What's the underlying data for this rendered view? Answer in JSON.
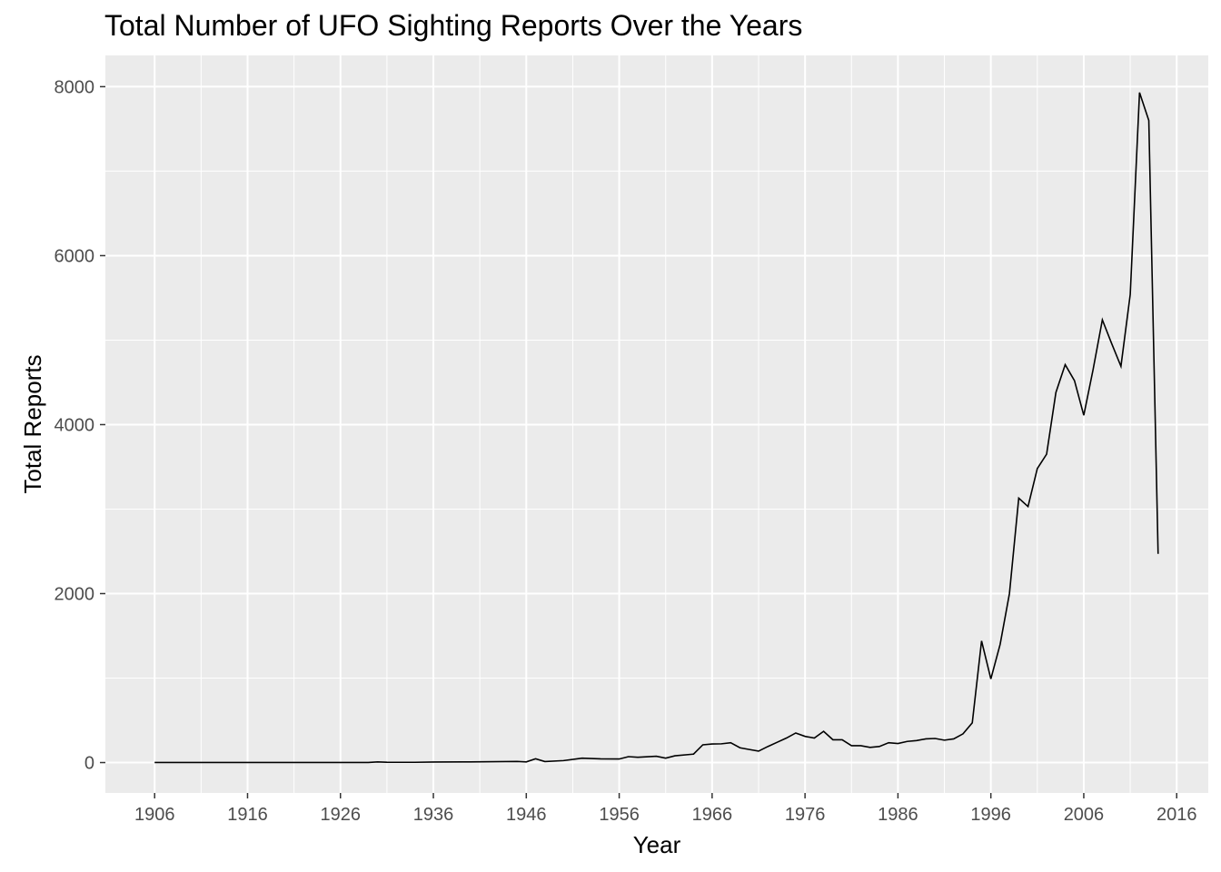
{
  "chart_data": {
    "type": "line",
    "title": "Total Number of UFO Sighting Reports Over the Years",
    "xlabel": "Year",
    "ylabel": "Total Reports",
    "xlim": [
      1900.7,
      2019.4
    ],
    "ylim": [
      -360,
      8370
    ],
    "x_ticks": [
      1906,
      1916,
      1926,
      1936,
      1946,
      1956,
      1966,
      1976,
      1986,
      1996,
      2006,
      2016
    ],
    "y_ticks": [
      0,
      2000,
      4000,
      6000,
      8000
    ],
    "grid": true,
    "legend": "none",
    "colors": {
      "panel": "#EBEBEB",
      "grid": "#FFFFFF",
      "line": "#000000"
    },
    "series": [
      {
        "x": [
          1906,
          1910,
          1916,
          1920,
          1926,
          1929,
          1930,
          1931,
          1934,
          1936,
          1940,
          1945,
          1946,
          1947,
          1948,
          1950,
          1952,
          1954,
          1956,
          1957,
          1958,
          1960,
          1961,
          1962,
          1964,
          1965,
          1966,
          1967,
          1968,
          1969,
          1970,
          1971,
          1972,
          1973,
          1974,
          1975,
          1976,
          1977,
          1978,
          1979,
          1980,
          1981,
          1982,
          1983,
          1984,
          1985,
          1986,
          1987,
          1988,
          1989,
          1990,
          1991,
          1992,
          1993,
          1994,
          1995,
          1996,
          1997,
          1998,
          1999,
          2000,
          2001,
          2002,
          2003,
          2004,
          2005,
          2006,
          2007,
          2008,
          2009,
          2010,
          2011,
          2012,
          2013,
          2014
        ],
        "y": [
          1,
          1,
          1,
          1,
          1,
          1,
          8,
          4,
          3,
          6,
          8,
          13,
          8,
          45,
          12,
          23,
          52,
          44,
          42,
          70,
          63,
          75,
          52,
          80,
          100,
          210,
          220,
          222,
          235,
          175,
          155,
          135,
          190,
          240,
          290,
          350,
          310,
          290,
          370,
          270,
          270,
          200,
          200,
          180,
          190,
          235,
          225,
          250,
          260,
          280,
          285,
          265,
          280,
          340,
          470,
          1440,
          990,
          1400,
          2000,
          3130,
          3030,
          3480,
          3650,
          4380,
          4710,
          4520,
          4110,
          4650,
          5240,
          4960,
          4690,
          5540,
          7930,
          7600,
          2470
        ]
      }
    ]
  }
}
